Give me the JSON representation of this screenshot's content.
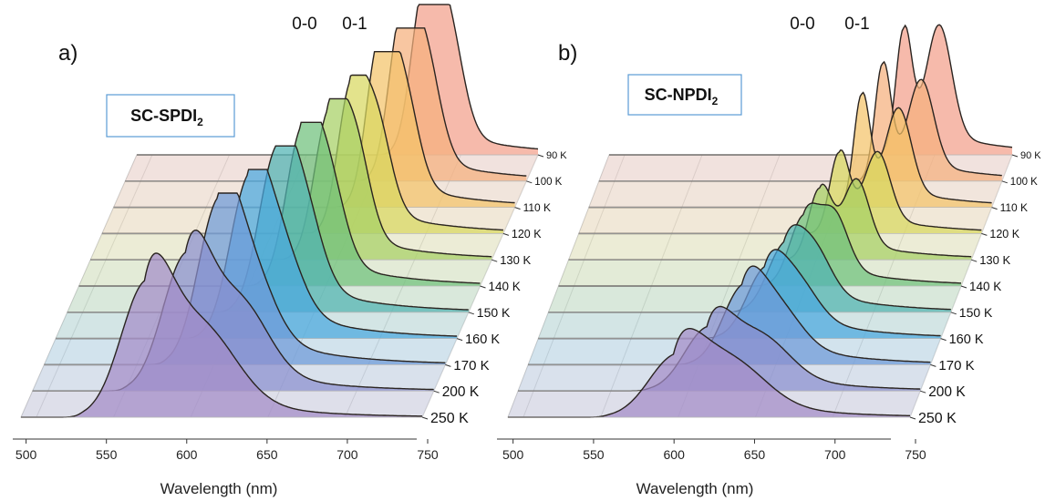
{
  "chart_data": [
    {
      "type": "area",
      "panel_label": "a)",
      "sample": {
        "main": "SC-SPDI",
        "sub": "2"
      },
      "xlabel": "Wavelength (nm)",
      "xlim": [
        490,
        750
      ],
      "x_ticks": [
        500,
        550,
        600,
        650,
        700,
        750
      ],
      "peak_labels": [
        "0-0",
        "0-1"
      ],
      "series": [
        {
          "name": "90 K",
          "color": "#f3a08a",
          "peaks": [
            {
              "x": 675,
              "h": 0.92,
              "w": 8
            },
            {
              "x": 690,
              "h": 0.88,
              "w": 10
            }
          ],
          "tail": 0.22
        },
        {
          "name": "100 K",
          "color": "#f5b07d",
          "peaks": [
            {
              "x": 668,
              "h": 0.92,
              "w": 8
            },
            {
              "x": 683,
              "h": 0.8,
              "w": 10
            }
          ],
          "tail": 0.22
        },
        {
          "name": "110 K",
          "color": "#f4c46a",
          "peaks": [
            {
              "x": 661,
              "h": 0.9,
              "w": 8
            },
            {
              "x": 676,
              "h": 0.75,
              "w": 10
            }
          ],
          "tail": 0.22
        },
        {
          "name": "120 K",
          "color": "#d8d860",
          "peaks": [
            {
              "x": 650,
              "h": 0.8,
              "w": 8
            },
            {
              "x": 666,
              "h": 0.7,
              "w": 10
            }
          ],
          "tail": 0.22
        },
        {
          "name": "130 K",
          "color": "#a6d064",
          "peaks": [
            {
              "x": 643,
              "h": 0.8,
              "w": 9
            },
            {
              "x": 660,
              "h": 0.7,
              "w": 10
            }
          ],
          "tail": 0.22
        },
        {
          "name": "140 K",
          "color": "#6fc07c",
          "peaks": [
            {
              "x": 633,
              "h": 0.82,
              "w": 10
            },
            {
              "x": 650,
              "h": 0.62,
              "w": 11
            }
          ],
          "tail": 0.24
        },
        {
          "name": "150 K",
          "color": "#4fb3b3",
          "peaks": [
            {
              "x": 624,
              "h": 0.85,
              "w": 11
            },
            {
              "x": 642,
              "h": 0.55,
              "w": 12
            }
          ],
          "tail": 0.26
        },
        {
          "name": "160 K",
          "color": "#4aa7df",
          "peaks": [
            {
              "x": 614,
              "h": 0.85,
              "w": 12
            },
            {
              "x": 634,
              "h": 0.45,
              "w": 14
            }
          ],
          "tail": 0.3
        },
        {
          "name": "170 K",
          "color": "#6e9ad8",
          "peaks": [
            {
              "x": 602,
              "h": 0.88,
              "w": 13
            },
            {
              "x": 624,
              "h": 0.4,
              "w": 15
            }
          ],
          "tail": 0.32
        },
        {
          "name": "200 K",
          "color": "#8b8fcf",
          "peaks": [
            {
              "x": 589,
              "h": 0.78,
              "w": 15
            },
            {
              "x": 625,
              "h": 0.4,
              "w": 18
            }
          ],
          "tail": 0.32
        },
        {
          "name": "250 K",
          "color": "#a48cc8",
          "peaks": [
            {
              "x": 570,
              "h": 0.72,
              "w": 16
            },
            {
              "x": 608,
              "h": 0.4,
              "w": 22
            }
          ],
          "tail": 0.34
        }
      ]
    },
    {
      "type": "area",
      "panel_label": "b)",
      "sample": {
        "main": "SC-NPDI",
        "sub": "2"
      },
      "xlabel": "Wavelength (nm)",
      "xlim": [
        490,
        750
      ],
      "x_ticks": [
        500,
        550,
        600,
        650,
        700,
        750
      ],
      "peak_labels": [
        "0-0",
        "0-1"
      ],
      "series": [
        {
          "name": "90 K",
          "color": "#f3a08a",
          "peaks": [
            {
              "x": 680,
              "h": 0.98,
              "w": 5
            },
            {
              "x": 703,
              "h": 0.86,
              "w": 8
            }
          ],
          "tail": 0.28
        },
        {
          "name": "100 K",
          "color": "#f5b07d",
          "peaks": [
            {
              "x": 673,
              "h": 0.9,
              "w": 5
            },
            {
              "x": 698,
              "h": 0.65,
              "w": 8
            }
          ],
          "tail": 0.24
        },
        {
          "name": "110 K",
          "color": "#f4c46a",
          "peaks": [
            {
              "x": 666,
              "h": 0.85,
              "w": 5
            },
            {
              "x": 690,
              "h": 0.63,
              "w": 8
            }
          ],
          "tail": 0.22
        },
        {
          "name": "120 K",
          "color": "#d8d860",
          "peaks": [
            {
              "x": 658,
              "h": 0.6,
              "w": 6
            },
            {
              "x": 683,
              "h": 0.5,
              "w": 8
            }
          ],
          "tail": 0.2
        },
        {
          "name": "130 K",
          "color": "#a6d064",
          "peaks": [
            {
              "x": 652,
              "h": 0.52,
              "w": 7
            },
            {
              "x": 676,
              "h": 0.48,
              "w": 8
            }
          ],
          "tail": 0.2
        },
        {
          "name": "140 K",
          "color": "#6fc07c",
          "peaks": [
            {
              "x": 648,
              "h": 0.48,
              "w": 9
            },
            {
              "x": 668,
              "h": 0.4,
              "w": 9
            }
          ],
          "tail": 0.2
        },
        {
          "name": "150 K",
          "color": "#4fb3b3",
          "peaks": [
            {
              "x": 642,
              "h": 0.44,
              "w": 11
            },
            {
              "x": 662,
              "h": 0.3,
              "w": 11
            }
          ],
          "tail": 0.22
        },
        {
          "name": "160 K",
          "color": "#4aa7df",
          "peaks": [
            {
              "x": 636,
              "h": 0.44,
              "w": 12
            },
            {
              "x": 658,
              "h": 0.25,
              "w": 13
            }
          ],
          "tail": 0.24
        },
        {
          "name": "170 K",
          "color": "#6e9ad8",
          "peaks": [
            {
              "x": 628,
              "h": 0.48,
              "w": 13
            },
            {
              "x": 652,
              "h": 0.25,
              "w": 15
            }
          ],
          "tail": 0.26
        },
        {
          "name": "200 K",
          "color": "#8b8fcf",
          "peaks": [
            {
              "x": 612,
              "h": 0.4,
              "w": 15
            },
            {
              "x": 648,
              "h": 0.25,
              "w": 18
            }
          ],
          "tail": 0.28
        },
        {
          "name": "250 K",
          "color": "#a48cc8",
          "peaks": [
            {
              "x": 597,
              "h": 0.36,
              "w": 17
            },
            {
              "x": 635,
              "h": 0.26,
              "w": 22
            }
          ],
          "tail": 0.3
        }
      ]
    }
  ]
}
